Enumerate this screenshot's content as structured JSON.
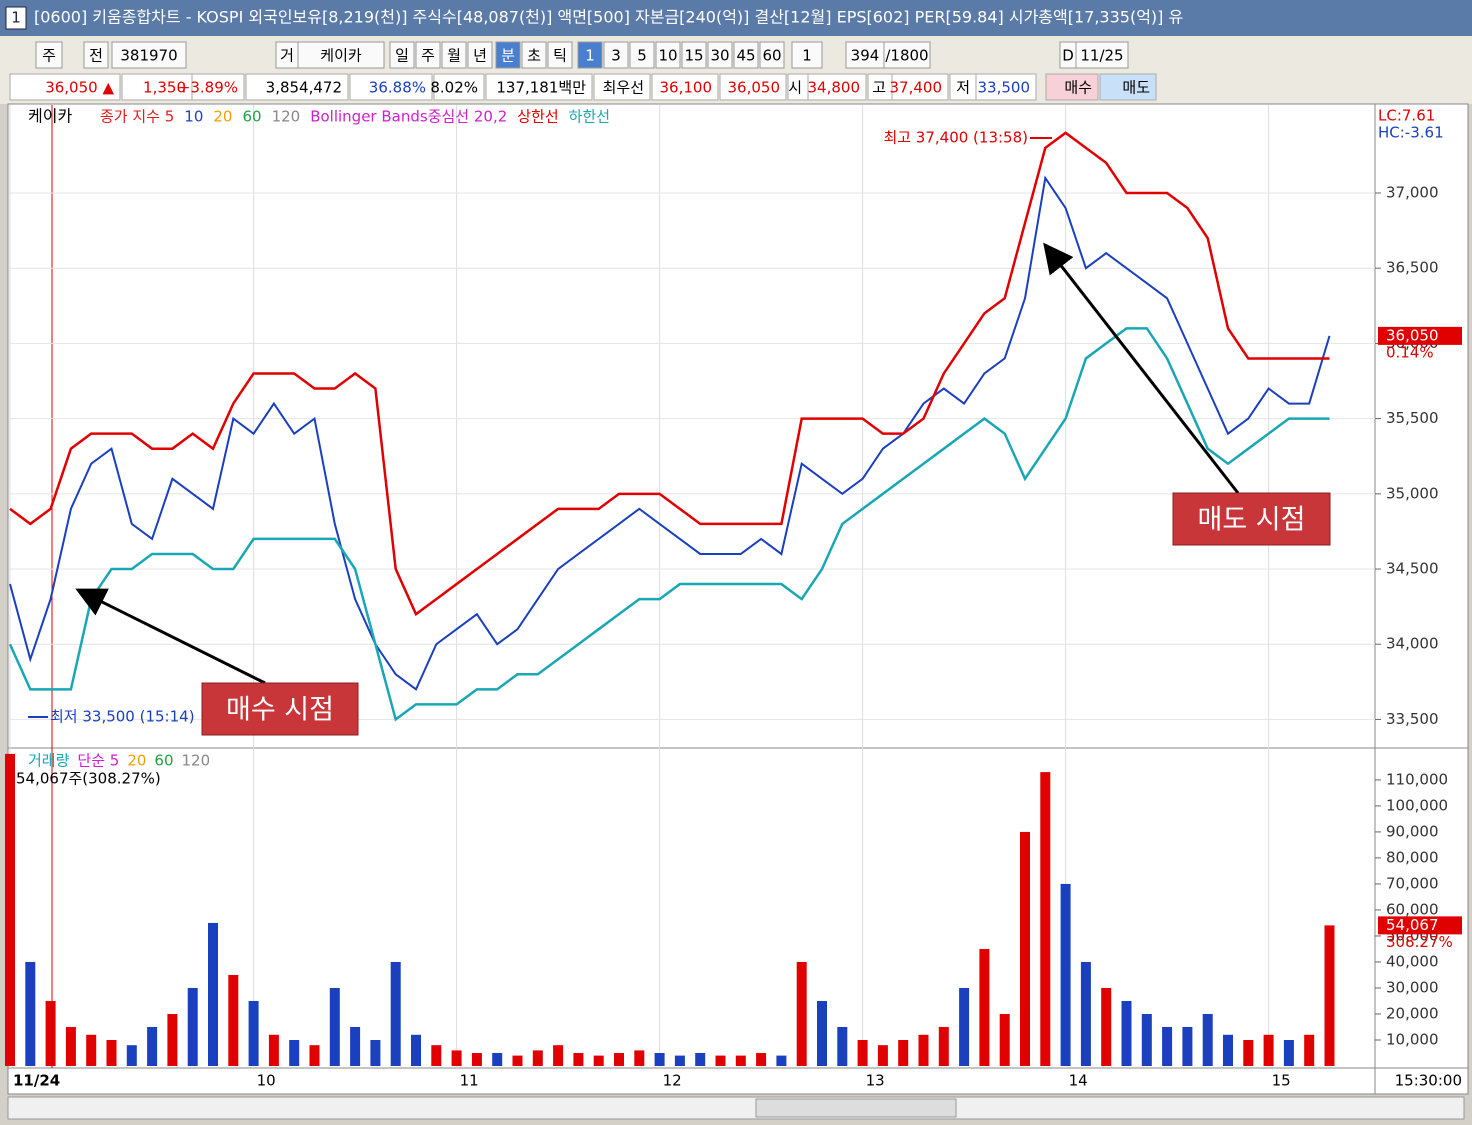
{
  "title_bar": {
    "icon": "1",
    "text": "[0600] 키움종합차트 - KOSPI 외국인보유[8,219(천)] 주식수[48,087(천)] 액면[500] 자본금[240(억)] 결산[12월] EPS[602] PER[59.84] 시가총액[17,335(억)] 유"
  },
  "toolbar": {
    "items": [
      "주",
      "전",
      "381970",
      "거",
      "케이카",
      "일",
      "주",
      "월",
      "년",
      "분",
      "초",
      "틱",
      "1",
      "3",
      "5",
      "10",
      "15",
      "30",
      "45",
      "60",
      "1",
      "394",
      "/1800",
      "D",
      "11/25"
    ]
  },
  "quote_bar": {
    "items": [
      {
        "text": "36,050 ▲",
        "color": "#e00000"
      },
      {
        "text": "1,350",
        "color": "#e00000"
      },
      {
        "text": "+3.89%",
        "color": "#e00000"
      },
      {
        "text": "3,854,472",
        "color": "#000000"
      },
      {
        "text": "36.88%",
        "color": "#1a3fbf"
      },
      {
        "text": "8.02%",
        "color": "#000000"
      },
      {
        "text": "137,181백만",
        "color": "#000000"
      },
      {
        "text": "최우선",
        "color": "#000000"
      },
      {
        "text": "36,100",
        "color": "#e00000"
      },
      {
        "text": "36,050",
        "color": "#e00000"
      },
      {
        "text": "시",
        "color": "#000000"
      },
      {
        "text": "34,800",
        "color": "#e00000"
      },
      {
        "text": "고",
        "color": "#000000"
      },
      {
        "text": "37,400",
        "color": "#e00000"
      },
      {
        "text": "저",
        "color": "#000000"
      },
      {
        "text": "33,500",
        "color": "#1a3fbf"
      },
      {
        "text": "매수",
        "color": "#000000"
      },
      {
        "text": "매도",
        "color": "#000000"
      }
    ]
  },
  "chart_data": [
    {
      "type": "line",
      "title": "케이카",
      "indicator_labels": [
        {
          "text": "종가 지수 5",
          "color": "#e02020"
        },
        {
          "text": "10",
          "color": "#2040d0"
        },
        {
          "text": "20",
          "color": "#f0a000"
        },
        {
          "text": "60",
          "color": "#20a040"
        },
        {
          "text": "120",
          "color": "#888888"
        },
        {
          "text": "Bollinger Bands중심선 20,2",
          "color": "#d020d0"
        }
      ],
      "series": [
        {
          "name": "케이카",
          "color": "#1a3fbf",
          "values": [
            34400,
            33900,
            34300,
            34900,
            35200,
            35300,
            34800,
            34700,
            35100,
            35000,
            34900,
            35500,
            35400,
            35600,
            35400,
            35500,
            34800,
            34300,
            34000,
            33800,
            33700,
            34000,
            34100,
            34200,
            34000,
            34100,
            34300,
            34500,
            34600,
            34700,
            34800,
            34900,
            34800,
            34700,
            34600,
            34600,
            34600,
            34700,
            34600,
            35200,
            35100,
            35000,
            35100,
            35300,
            35400,
            35600,
            35700,
            35600,
            35800,
            35900,
            36300,
            37100,
            36900,
            36500,
            36600,
            36500,
            36400,
            36300,
            36000,
            35700,
            35400,
            35500,
            35700,
            35600,
            35600,
            36050
          ]
        },
        {
          "name": "상한선",
          "color": "#e00000",
          "values": [
            34900,
            34800,
            34900,
            35300,
            35400,
            35400,
            35400,
            35300,
            35300,
            35400,
            35300,
            35600,
            35800,
            35800,
            35800,
            35700,
            35700,
            35800,
            35700,
            34500,
            34200,
            34300,
            34400,
            34500,
            34600,
            34700,
            34800,
            34900,
            34900,
            34900,
            35000,
            35000,
            35000,
            34900,
            34800,
            34800,
            34800,
            34800,
            34800,
            35500,
            35500,
            35500,
            35500,
            35400,
            35400,
            35500,
            35800,
            36000,
            36200,
            36300,
            36800,
            37300,
            37400,
            37300,
            37200,
            37000,
            37000,
            37000,
            36900,
            36700,
            36100,
            35900,
            35900,
            35900,
            35900,
            35900
          ]
        },
        {
          "name": "하한선",
          "color": "#1aa7b5",
          "values": [
            34000,
            33700,
            33700,
            33700,
            34300,
            34500,
            34500,
            34600,
            34600,
            34600,
            34500,
            34500,
            34700,
            34700,
            34700,
            34700,
            34700,
            34500,
            34000,
            33500,
            33600,
            33600,
            33600,
            33700,
            33700,
            33800,
            33800,
            33900,
            34000,
            34100,
            34200,
            34300,
            34300,
            34400,
            34400,
            34400,
            34400,
            34400,
            34400,
            34300,
            34500,
            34800,
            34900,
            35000,
            35100,
            35200,
            35300,
            35400,
            35500,
            35400,
            35100,
            35300,
            35500,
            35900,
            36000,
            36100,
            36100,
            35900,
            35600,
            35300,
            35200,
            35300,
            35400,
            35500,
            35500,
            35500
          ]
        }
      ],
      "ylim": [
        33330,
        37585
      ],
      "yticks": [
        {
          "value": 33500,
          "label": "33,500"
        },
        {
          "value": 34000,
          "label": "34,000"
        },
        {
          "value": 34500,
          "label": "34,500"
        },
        {
          "value": 35000,
          "label": "35,000"
        },
        {
          "value": 35500,
          "label": "35,500"
        },
        {
          "value": 36000,
          "label": "36,000"
        },
        {
          "value": 36500,
          "label": "36,500"
        },
        {
          "value": 37000,
          "label": "37,000"
        }
      ],
      "grid": true,
      "last_price": {
        "value": 36050,
        "label": "36,050"
      },
      "change_label": "0.14%",
      "range_labels": [
        "LC:7.61",
        "HC:-3.61"
      ],
      "annotations": [
        "최고 37,400 (13:58)",
        "최저 33,500 (15:14)",
        "매수 시점",
        "매도 시점"
      ]
    },
    {
      "type": "bar",
      "title": "거래량",
      "indicator_labels": [
        {
          "text": "단순 5",
          "color": "#d020d0"
        },
        {
          "text": "20",
          "color": "#f0a000"
        },
        {
          "text": "60",
          "color": "#20a040"
        },
        {
          "text": "120",
          "color": "#888888"
        }
      ],
      "volume_label": "54,067주(308.27%)",
      "categories": [
        "11/24",
        null,
        null,
        null,
        null,
        null,
        null,
        null,
        null,
        null,
        null,
        null,
        "10",
        null,
        null,
        null,
        null,
        null,
        null,
        null,
        null,
        null,
        "11",
        null,
        null,
        null,
        null,
        null,
        null,
        null,
        null,
        null,
        "12",
        null,
        null,
        null,
        null,
        null,
        null,
        null,
        null,
        null,
        "13",
        null,
        null,
        null,
        null,
        null,
        null,
        null,
        null,
        null,
        "14",
        null,
        null,
        null,
        null,
        null,
        null,
        null,
        null,
        null,
        "15",
        null,
        null,
        null
      ],
      "values": [
        120000,
        40000,
        25000,
        15000,
        12000,
        10000,
        8000,
        15000,
        20000,
        30000,
        55000,
        35000,
        25000,
        12000,
        10000,
        8000,
        30000,
        15000,
        10000,
        40000,
        12000,
        8000,
        6000,
        5000,
        5000,
        4000,
        6000,
        8000,
        5000,
        4000,
        5000,
        6000,
        5000,
        4000,
        5000,
        4000,
        4000,
        5000,
        4000,
        40000,
        25000,
        15000,
        10000,
        8000,
        10000,
        12000,
        15000,
        30000,
        45000,
        20000,
        90000,
        113000,
        70000,
        40000,
        30000,
        25000,
        20000,
        15000,
        15000,
        20000,
        12000,
        10000,
        12000,
        10000,
        12000,
        54067
      ],
      "up_color": "#e00000",
      "down_color": "#1a3fbf",
      "ylim": [
        0,
        121500
      ],
      "yticks": [
        {
          "value": 10000,
          "label": "10,000"
        },
        {
          "value": 20000,
          "label": "20,000"
        },
        {
          "value": 30000,
          "label": "30,000"
        },
        {
          "value": 40000,
          "label": "40,000"
        },
        {
          "value": 50000,
          "label": "50,000"
        },
        {
          "value": 60000,
          "label": "60,000"
        },
        {
          "value": 70000,
          "label": "70,000"
        },
        {
          "value": 80000,
          "label": "80,000"
        },
        {
          "value": 90000,
          "label": "90,000"
        },
        {
          "value": 100000,
          "label": "100,000"
        },
        {
          "value": 110000,
          "label": "110,000"
        }
      ],
      "last_value": {
        "value": 54067,
        "label": "54,067"
      },
      "change_label": "308.27%",
      "time_label": "15:30:00"
    }
  ]
}
